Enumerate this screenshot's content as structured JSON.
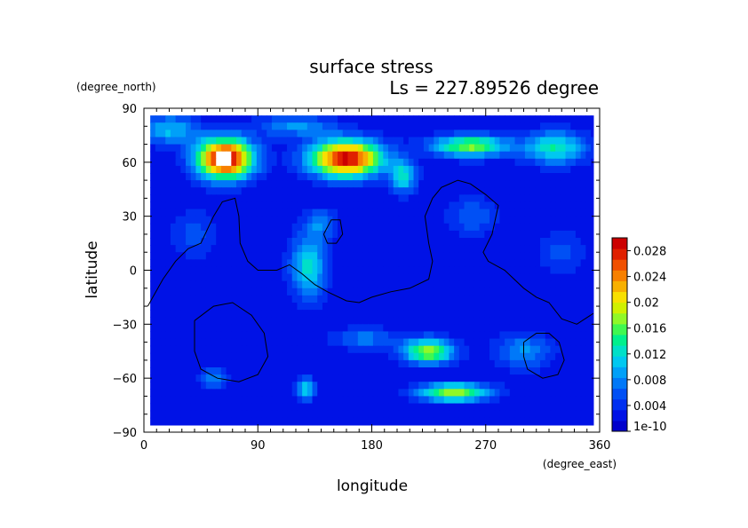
{
  "chart_data": {
    "type": "heatmap",
    "title": "surface stress",
    "subtitle": "Ls = 227.89526 degree",
    "xlabel": "longitude",
    "ylabel": "latitude",
    "x_unit": "(degree_east)",
    "y_unit": "(degree_north)",
    "xlim": [
      0,
      360
    ],
    "ylim": [
      -90,
      90
    ],
    "x_ticks": [
      "0",
      "90",
      "180",
      "270",
      "360"
    ],
    "y_ticks": [
      "90",
      "60",
      "30",
      "0",
      "−30",
      "−60",
      "−90"
    ],
    "x_tick_values": [
      0,
      90,
      180,
      270,
      360
    ],
    "y_tick_values": [
      90,
      60,
      30,
      0,
      -30,
      -60,
      -90
    ],
    "data_extent": {
      "lon": [
        5,
        355
      ],
      "lat": [
        -86,
        86
      ]
    },
    "colorbar": {
      "min": 1e-10,
      "max": 0.03,
      "labels": [
        "1e-10",
        "0.004",
        "0.008",
        "0.012",
        "0.016",
        "0.02",
        "0.024",
        "0.028"
      ],
      "label_values": [
        0,
        0.004,
        0.008,
        0.012,
        0.016,
        0.02,
        0.024,
        0.028
      ],
      "colors": [
        "#0000cc",
        "#0012e6",
        "#0030f0",
        "#0050f5",
        "#0078f8",
        "#00a0f8",
        "#00c8f0",
        "#00e0c8",
        "#00f08c",
        "#40f850",
        "#90f828",
        "#d0f000",
        "#f8e000",
        "#f8b000",
        "#f88000",
        "#f05000",
        "#e02000",
        "#cc0000"
      ],
      "over_color": "#ffffff"
    },
    "field_background": 0.002,
    "blobs": [
      {
        "lon": 64,
        "lat": 62,
        "rlon": 22,
        "rlat": 11,
        "value": 0.031
      },
      {
        "lon": 160,
        "lat": 62,
        "rlon": 28,
        "rlat": 10,
        "value": 0.029
      },
      {
        "lon": 258,
        "lat": 69,
        "rlon": 30,
        "rlat": 6,
        "value": 0.016
      },
      {
        "lon": 325,
        "lat": 68,
        "rlon": 24,
        "rlat": 9,
        "value": 0.012
      },
      {
        "lon": 20,
        "lat": 78,
        "rlon": 22,
        "rlat": 8,
        "value": 0.009
      },
      {
        "lon": 120,
        "lat": 80,
        "rlon": 30,
        "rlat": 6,
        "value": 0.007
      },
      {
        "lon": 205,
        "lat": 52,
        "rlon": 10,
        "rlat": 9,
        "value": 0.011
      },
      {
        "lon": 130,
        "lat": 2,
        "rlon": 14,
        "rlat": 18,
        "value": 0.011
      },
      {
        "lon": 140,
        "lat": 26,
        "rlon": 12,
        "rlat": 8,
        "value": 0.006
      },
      {
        "lon": 225,
        "lat": -45,
        "rlon": 20,
        "rlat": 7,
        "value": 0.017
      },
      {
        "lon": 245,
        "lat": -68,
        "rlon": 28,
        "rlat": 5,
        "value": 0.017
      },
      {
        "lon": 128,
        "lat": -66,
        "rlon": 7,
        "rlat": 6,
        "value": 0.011
      },
      {
        "lon": 300,
        "lat": -45,
        "rlon": 22,
        "rlat": 10,
        "value": 0.007
      },
      {
        "lon": 55,
        "lat": -60,
        "rlon": 12,
        "rlat": 6,
        "value": 0.006
      },
      {
        "lon": 260,
        "lat": 30,
        "rlon": 20,
        "rlat": 10,
        "value": 0.005
      },
      {
        "lon": 330,
        "lat": 10,
        "rlon": 18,
        "rlat": 12,
        "value": 0.004
      },
      {
        "lon": 40,
        "lat": 20,
        "rlon": 18,
        "rlat": 14,
        "value": 0.004
      },
      {
        "lon": 175,
        "lat": -38,
        "rlon": 25,
        "rlat": 6,
        "value": 0.006
      }
    ],
    "topography_contours": [
      [
        [
          3,
          -20
        ],
        [
          15,
          -5
        ],
        [
          25,
          5
        ],
        [
          35,
          12
        ],
        [
          45,
          15
        ],
        [
          55,
          30
        ],
        [
          62,
          38
        ],
        [
          72,
          40
        ],
        [
          75,
          30
        ],
        [
          76,
          15
        ],
        [
          82,
          5
        ],
        [
          90,
          0
        ],
        [
          105,
          0
        ],
        [
          115,
          3
        ],
        [
          125,
          -2
        ],
        [
          135,
          -8
        ],
        [
          145,
          -12
        ],
        [
          160,
          -17
        ],
        [
          170,
          -18
        ],
        [
          180,
          -15
        ],
        [
          195,
          -12
        ],
        [
          210,
          -10
        ],
        [
          225,
          -5
        ],
        [
          228,
          5
        ],
        [
          225,
          15
        ],
        [
          222,
          30
        ],
        [
          228,
          40
        ],
        [
          235,
          46
        ],
        [
          248,
          50
        ],
        [
          258,
          48
        ],
        [
          270,
          42
        ],
        [
          280,
          36
        ],
        [
          275,
          20
        ],
        [
          268,
          10
        ],
        [
          272,
          5
        ],
        [
          285,
          0
        ],
        [
          300,
          -10
        ],
        [
          310,
          -15
        ],
        [
          320,
          -18
        ],
        [
          330,
          -27
        ],
        [
          342,
          -30
        ],
        [
          355,
          -24
        ]
      ],
      [
        [
          40,
          -28
        ],
        [
          55,
          -20
        ],
        [
          70,
          -18
        ],
        [
          85,
          -25
        ],
        [
          95,
          -35
        ],
        [
          98,
          -48
        ],
        [
          90,
          -58
        ],
        [
          75,
          -62
        ],
        [
          58,
          -60
        ],
        [
          45,
          -55
        ],
        [
          40,
          -45
        ],
        [
          40,
          -28
        ]
      ],
      [
        [
          300,
          -40
        ],
        [
          310,
          -35
        ],
        [
          320,
          -35
        ],
        [
          328,
          -40
        ],
        [
          332,
          -50
        ],
        [
          327,
          -58
        ],
        [
          315,
          -60
        ],
        [
          303,
          -55
        ],
        [
          300,
          -48
        ],
        [
          300,
          -40
        ]
      ],
      [
        [
          142,
          20
        ],
        [
          148,
          28
        ],
        [
          155,
          28
        ],
        [
          157,
          20
        ],
        [
          152,
          15
        ],
        [
          145,
          15
        ],
        [
          142,
          20
        ]
      ]
    ]
  }
}
